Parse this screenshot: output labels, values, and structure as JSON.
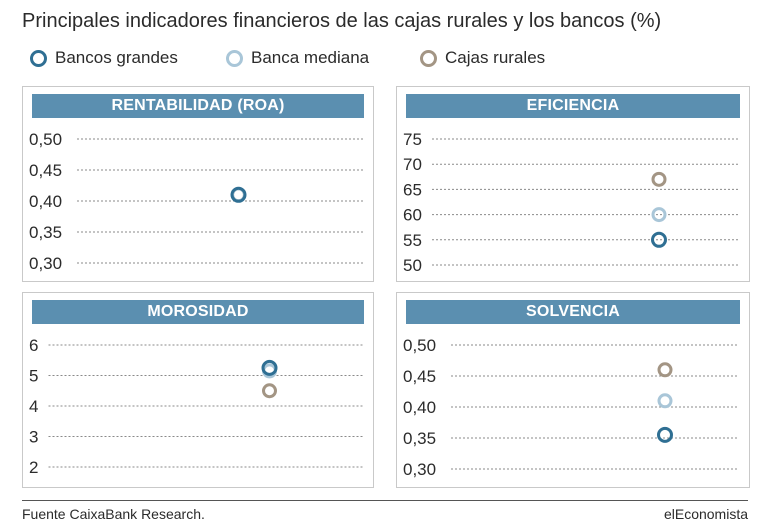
{
  "title": "Principales indicadores financieros de las cajas rurales y los bancos (%)",
  "legend": [
    {
      "label": "Bancos grandes",
      "color": "#2f6f93"
    },
    {
      "label": "Banca mediana",
      "color": "#a9c6d8"
    },
    {
      "label": "Cajas rurales",
      "color": "#a39584"
    }
  ],
  "chart_data": [
    {
      "type": "scatter",
      "title": "RENTABILIDAD (ROA)",
      "ylim": [
        0.3,
        0.5
      ],
      "yticks": [
        "0,50",
        "0,45",
        "0,40",
        "0,35",
        "0,30"
      ],
      "ytick_values": [
        0.5,
        0.45,
        0.4,
        0.35,
        0.3
      ],
      "grid": true,
      "series": [
        {
          "name": "Bancos grandes",
          "values": [
            0.41
          ]
        },
        {
          "name": "Banca mediana",
          "values": [
            0.41
          ]
        },
        {
          "name": "Cajas rurales",
          "values": [
            0.41
          ]
        }
      ]
    },
    {
      "type": "scatter",
      "title": "EFICIENCIA",
      "ylim": [
        50,
        75
      ],
      "yticks": [
        "75",
        "70",
        "65",
        "60",
        "55",
        "50"
      ],
      "ytick_values": [
        75,
        70,
        65,
        60,
        55,
        50
      ],
      "grid": true,
      "series": [
        {
          "name": "Bancos grandes",
          "values": [
            55
          ]
        },
        {
          "name": "Banca mediana",
          "values": [
            60
          ]
        },
        {
          "name": "Cajas rurales",
          "values": [
            67
          ]
        }
      ]
    },
    {
      "type": "scatter",
      "title": "MOROSIDAD",
      "ylim": [
        2,
        6
      ],
      "yticks": [
        "6",
        "5",
        "4",
        "3",
        "2"
      ],
      "ytick_values": [
        6,
        5,
        4,
        3,
        2
      ],
      "grid": true,
      "series": [
        {
          "name": "Bancos grandes",
          "values": [
            5.25
          ]
        },
        {
          "name": "Banca mediana",
          "values": [
            5.15
          ]
        },
        {
          "name": "Cajas rurales",
          "values": [
            4.5
          ]
        }
      ]
    },
    {
      "type": "scatter",
      "title": "SOLVENCIA",
      "ylim": [
        0.3,
        0.5
      ],
      "yticks": [
        "0,50",
        "0,45",
        "0,40",
        "0,35",
        "0,30"
      ],
      "ytick_values": [
        0.5,
        0.45,
        0.4,
        0.35,
        0.3
      ],
      "grid": true,
      "series": [
        {
          "name": "Bancos grandes",
          "values": [
            0.355
          ]
        },
        {
          "name": "Banca mediana",
          "values": [
            0.41
          ]
        },
        {
          "name": "Cajas rurales",
          "values": [
            0.46
          ]
        }
      ]
    }
  ],
  "footer": {
    "source": "Fuente CaixaBank Research.",
    "brand": "elEconomista"
  }
}
